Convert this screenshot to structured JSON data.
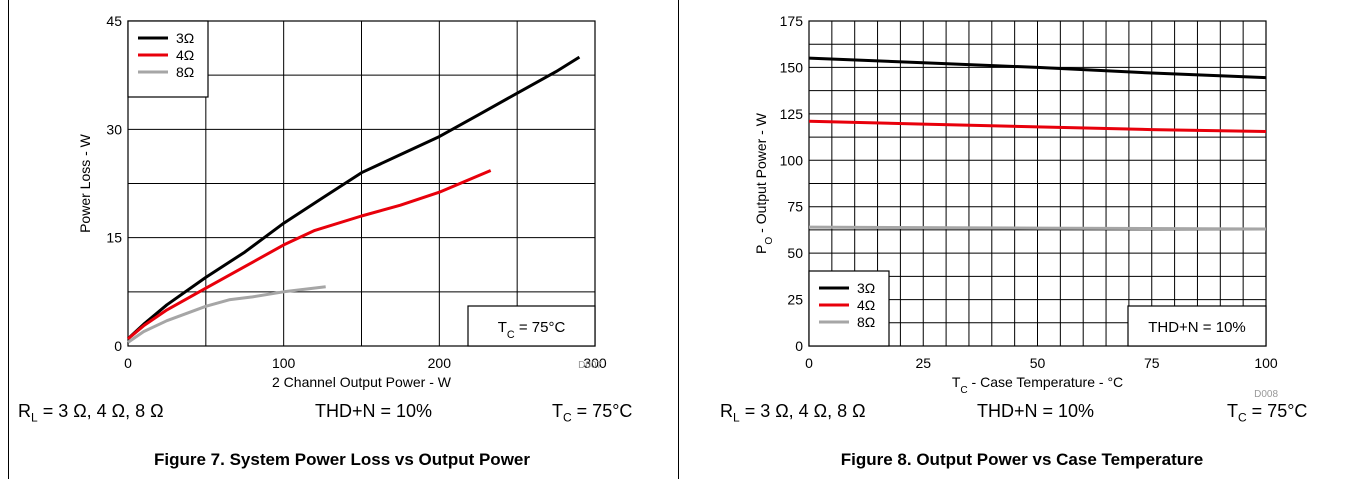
{
  "chart_data": [
    {
      "type": "line",
      "ylabel": "Power Loss - W",
      "xlabel": "2 Channel Output Power - W",
      "xlim": [
        0,
        300
      ],
      "ylim": [
        0,
        45
      ],
      "x_ticks": [
        "0",
        "100",
        "200",
        "300"
      ],
      "y_ticks": [
        "0",
        "15",
        "30",
        "45"
      ],
      "grid": true,
      "legend_position": "top-left",
      "code": "D007",
      "annotation": {
        "main": "T",
        "sub": "C",
        "rest": " = 75°C"
      },
      "series": [
        {
          "name": "3Ω",
          "color": "#000000",
          "x": [
            0,
            10,
            25,
            50,
            75,
            100,
            125,
            150,
            175,
            200,
            225,
            250,
            275,
            290
          ],
          "y": [
            1,
            3,
            5.7,
            9.5,
            13,
            17,
            20.5,
            24,
            26.5,
            29,
            32,
            35,
            38,
            40
          ]
        },
        {
          "name": "4Ω",
          "color": "#e8000b",
          "x": [
            0,
            10,
            25,
            50,
            75,
            100,
            120,
            150,
            175,
            200,
            233
          ],
          "y": [
            1,
            2.8,
            5,
            8,
            11,
            14,
            16,
            18,
            19.5,
            21.3,
            24.3
          ]
        },
        {
          "name": "8Ω",
          "color": "#a6a6a6",
          "x": [
            0,
            10,
            25,
            50,
            65,
            80,
            100,
            127
          ],
          "y": [
            0.5,
            2,
            3.5,
            5.5,
            6.4,
            6.8,
            7.5,
            8.2
          ]
        }
      ]
    },
    {
      "type": "line",
      "ylabel": {
        "main": "P",
        "sub": "O",
        "rest": " - Output Power - W"
      },
      "xlabel": {
        "main": "T",
        "sub": "C",
        "rest": " - Case Temperature - °C"
      },
      "xlim": [
        0,
        100
      ],
      "ylim": [
        0,
        175
      ],
      "x_ticks": [
        "0",
        "25",
        "50",
        "75",
        "100"
      ],
      "y_ticks": [
        "0",
        "25",
        "50",
        "75",
        "100",
        "125",
        "150",
        "175"
      ],
      "grid": true,
      "legend_position": "bottom-left",
      "code": "D008",
      "annotation": "THD+N = 10%",
      "series": [
        {
          "name": "3Ω",
          "color": "#000000",
          "x": [
            0,
            25,
            50,
            75,
            100
          ],
          "y": [
            155,
            152.5,
            150,
            147,
            144.5
          ]
        },
        {
          "name": "4Ω",
          "color": "#e8000b",
          "x": [
            0,
            25,
            50,
            75,
            100
          ],
          "y": [
            121,
            119.5,
            118,
            116.5,
            115.5
          ]
        },
        {
          "name": "8Ω",
          "color": "#a6a6a6",
          "x": [
            0,
            50,
            100
          ],
          "y": [
            64,
            63.5,
            63
          ]
        }
      ]
    }
  ],
  "conditions": [
    {
      "rl": {
        "main": "R",
        "sub": "L",
        "rest": " = 3 Ω, 4 Ω, 8 Ω"
      },
      "thd": "THD+N = 10%",
      "tc": {
        "main": "T",
        "sub": "C",
        "rest": " = 75°C"
      }
    },
    {
      "rl": {
        "main": "R",
        "sub": "L",
        "rest": " = 3 Ω, 4 Ω, 8 Ω"
      },
      "thd": "THD+N = 10%",
      "tc": {
        "main": "T",
        "sub": "C",
        "rest": " = 75°C"
      }
    }
  ],
  "captions": [
    "Figure 7. System Power Loss vs Output Power",
    "Figure 8. Output Power vs Case Temperature"
  ]
}
